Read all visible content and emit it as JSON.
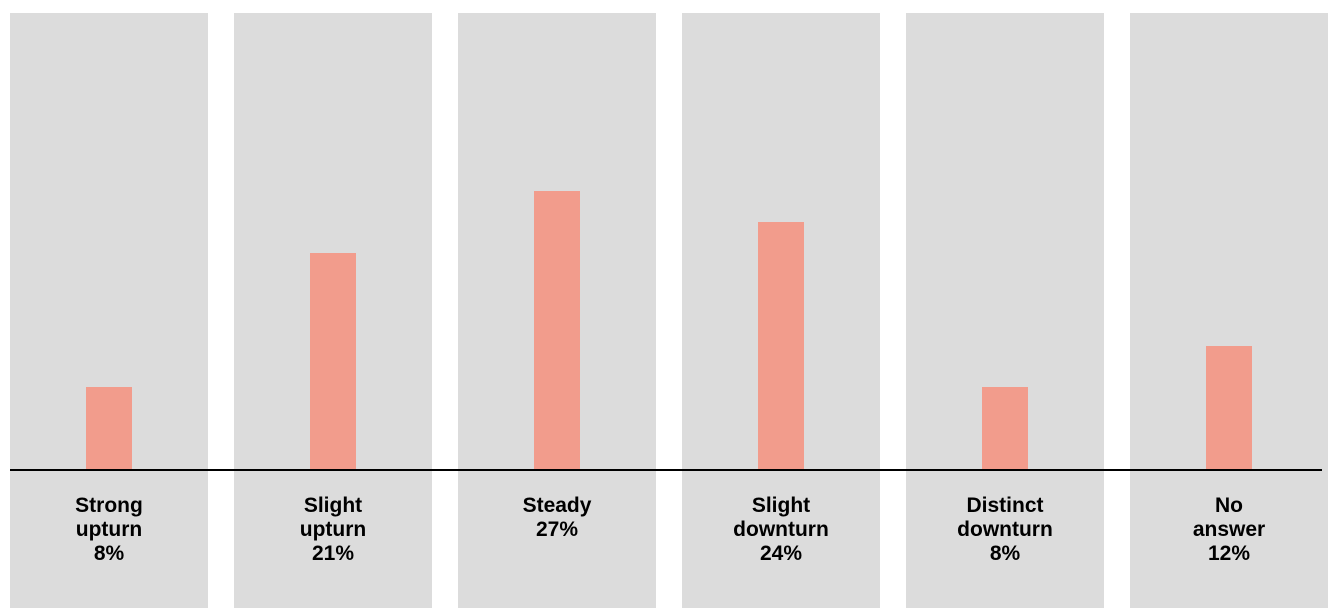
{
  "chart_data": {
    "type": "bar",
    "categories": [
      [
        "Strong",
        "upturn"
      ],
      [
        "Slight",
        "upturn"
      ],
      [
        "Steady"
      ],
      [
        "Slight",
        "downturn"
      ],
      [
        "Distinct",
        "downturn"
      ],
      [
        "No",
        "answer"
      ]
    ],
    "values": [
      8,
      21,
      27,
      24,
      8,
      12
    ],
    "value_labels": [
      "8%",
      "21%",
      "27%",
      "24%",
      "8%",
      "12%"
    ],
    "unit": "%",
    "ylim": [
      0,
      44
    ],
    "grid": false,
    "legend": "none"
  },
  "colors": {
    "bar": "#f29c8c",
    "column_background": "#dcdcdc",
    "baseline": "#000000"
  }
}
